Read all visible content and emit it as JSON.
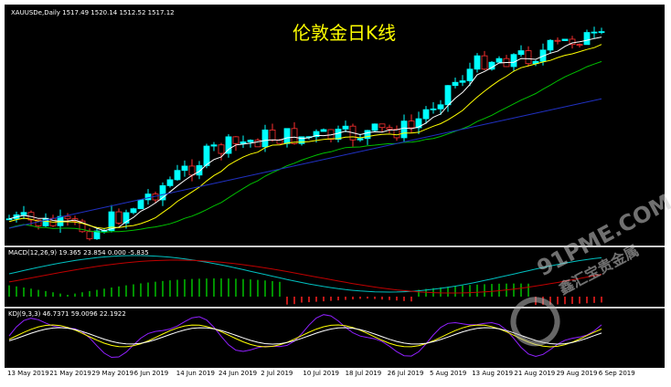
{
  "header": {
    "symbol_line": "XAUUSDe,Daily  1517.49 1520.14 1512.52 1517.12",
    "title": "伦敦金日K线"
  },
  "macd": {
    "label": "MACD(12,26,9) 19.365 23.854 0.000 -5.835"
  },
  "kdj": {
    "label": "KDJ(9,3,3) 46.7371 59.0096 22.1922"
  },
  "watermark": {
    "site": "91PME.COM",
    "brand": "鑫汇宝贵金属"
  },
  "x_axis": {
    "dates": [
      "13 May 2019",
      "21 May 2019",
      "29 May 2019",
      "6 Jun 2019",
      "14 Jun 2019",
      "24 Jun 2019",
      "2 Jul 2019",
      "10 Jul 2019",
      "18 Jul 2019",
      "26 Jul 2019",
      "5 Aug 2019",
      "13 Aug 2019",
      "21 Aug 2019",
      "29 Aug 2019",
      "6 Sep 2019"
    ]
  }
}
